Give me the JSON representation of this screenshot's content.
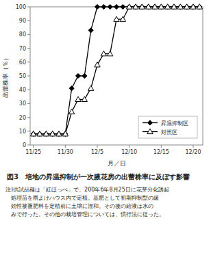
{
  "chart_data": {
    "type": "line",
    "title": "図3　培地の昇温抑制が一次腋花房の出蕾株率に及ぼす影響",
    "annotations": [
      "注)供試品種は「紅ほっぺ」で、200年6年8月25日に花芽分化誘起",
      "　処理苗を雨よけハウス内で定植。基肥として初期抑制型の緩",
      "　効性被覆肥料を定植前に土壌に混和。その後の給液は水の",
      "　みで行った。その他の栽培管理については、慣行法に従った。"
    ],
    "x_label": "月／日",
    "y_label": "出蕾株率（％）",
    "x": [
      0,
      1,
      2,
      3,
      4,
      5,
      6,
      7,
      8,
      9,
      10,
      11,
      12,
      13,
      14,
      15,
      16,
      17,
      18,
      19,
      20,
      21,
      22,
      23,
      24,
      25,
      26
    ],
    "series": [
      {
        "name": "昇温抑制区",
        "color": "#000000",
        "marker": "diamond",
        "values": [
          8,
          8,
          8,
          8,
          8,
          8,
          41,
          50,
          50,
          83,
          100,
          100,
          100,
          100,
          100,
          100,
          100,
          100,
          100,
          100,
          100,
          100,
          100,
          100,
          100,
          100,
          100
        ]
      },
      {
        "name": "対照区",
        "color": "#000000",
        "marker": "triangle-open",
        "values": [
          8,
          8,
          8,
          8,
          8,
          8,
          24,
          33,
          33,
          41,
          58,
          66,
          66,
          91,
          91,
          100,
          100,
          100,
          100,
          100,
          100,
          100,
          100,
          100,
          100,
          100,
          100
        ]
      }
    ],
    "xlim": [
      -0.5,
      26.5
    ],
    "xticks": [
      {
        "value": 0,
        "label": "11/25"
      },
      {
        "value": 5,
        "label": "11/30"
      },
      {
        "value": 10,
        "label": "12/5"
      },
      {
        "value": 15,
        "label": "12/10"
      },
      {
        "value": 20,
        "label": "12/15"
      },
      {
        "value": 25,
        "label": "12/20"
      }
    ],
    "ylim": [
      0,
      100
    ],
    "yticks": [
      0,
      10,
      20,
      30,
      40,
      50,
      60,
      70,
      80,
      90,
      100
    ],
    "grid": false,
    "legend": "lower right"
  }
}
